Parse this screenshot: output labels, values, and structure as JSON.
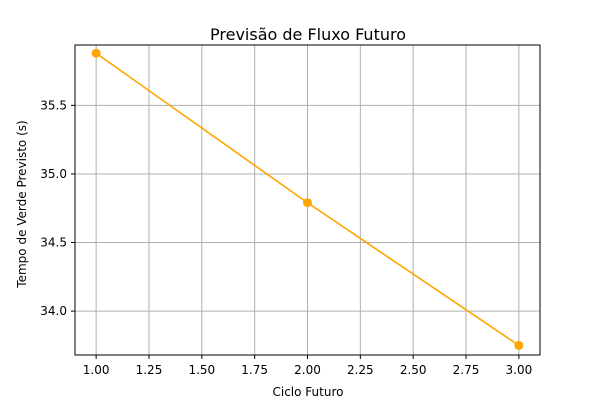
{
  "chart_data": {
    "type": "line",
    "title": "Previsão de Fluxo Futuro",
    "xlabel": "Ciclo Futuro",
    "ylabel": "Tempo de Verde Previsto (s)",
    "xlim": [
      0.9,
      3.1
    ],
    "ylim": [
      33.68,
      35.94
    ],
    "xticks": [
      1.0,
      1.25,
      1.5,
      1.75,
      2.0,
      2.25,
      2.5,
      2.75,
      3.0
    ],
    "xtick_labels": [
      "1.00",
      "1.25",
      "1.50",
      "1.75",
      "2.00",
      "2.25",
      "2.50",
      "2.75",
      "3.00"
    ],
    "yticks": [
      34.0,
      34.5,
      35.0,
      35.5
    ],
    "ytick_labels": [
      "34.0",
      "34.5",
      "35.0",
      "35.5"
    ],
    "grid": true,
    "series": [
      {
        "x": [
          1,
          2,
          3
        ],
        "y": [
          35.88,
          34.79,
          33.75
        ],
        "color": "#ffa500",
        "marker": "circle"
      }
    ]
  }
}
